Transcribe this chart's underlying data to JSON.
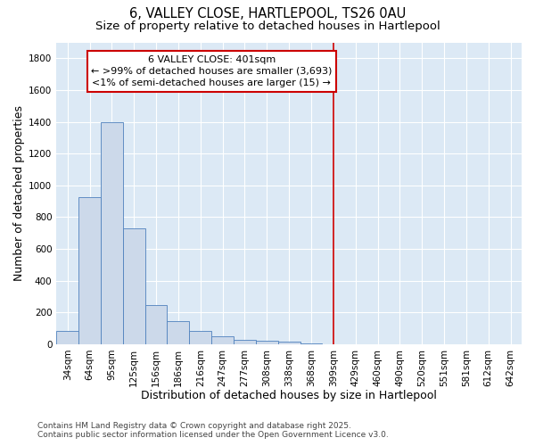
{
  "title_line1": "6, VALLEY CLOSE, HARTLEPOOL, TS26 0AU",
  "title_line2": "Size of property relative to detached houses in Hartlepool",
  "xlabel": "Distribution of detached houses by size in Hartlepool",
  "ylabel": "Number of detached properties",
  "bar_color": "#ccd9ea",
  "bar_edge_color": "#4f81bd",
  "bg_color": "#dce9f5",
  "grid_color": "#ffffff",
  "categories": [
    "34sqm",
    "64sqm",
    "95sqm",
    "125sqm",
    "156sqm",
    "186sqm",
    "216sqm",
    "247sqm",
    "277sqm",
    "308sqm",
    "338sqm",
    "368sqm",
    "399sqm",
    "429sqm",
    "460sqm",
    "490sqm",
    "520sqm",
    "551sqm",
    "581sqm",
    "612sqm",
    "642sqm"
  ],
  "values": [
    85,
    925,
    1400,
    730,
    245,
    145,
    85,
    50,
    30,
    20,
    15,
    5,
    0,
    0,
    0,
    0,
    0,
    0,
    0,
    0,
    0
  ],
  "vline_x": 12,
  "vline_color": "#cc0000",
  "annotation_text": "6 VALLEY CLOSE: 401sqm\n← >99% of detached houses are smaller (3,693)\n<1% of semi-detached houses are larger (15) →",
  "ylim": [
    0,
    1900
  ],
  "yticks": [
    0,
    200,
    400,
    600,
    800,
    1000,
    1200,
    1400,
    1600,
    1800
  ],
  "footer_line1": "Contains HM Land Registry data © Crown copyright and database right 2025.",
  "footer_line2": "Contains public sector information licensed under the Open Government Licence v3.0.",
  "title_fontsize": 10.5,
  "subtitle_fontsize": 9.5,
  "axis_label_fontsize": 9,
  "tick_fontsize": 7.5,
  "annotation_fontsize": 8,
  "footer_fontsize": 6.5
}
